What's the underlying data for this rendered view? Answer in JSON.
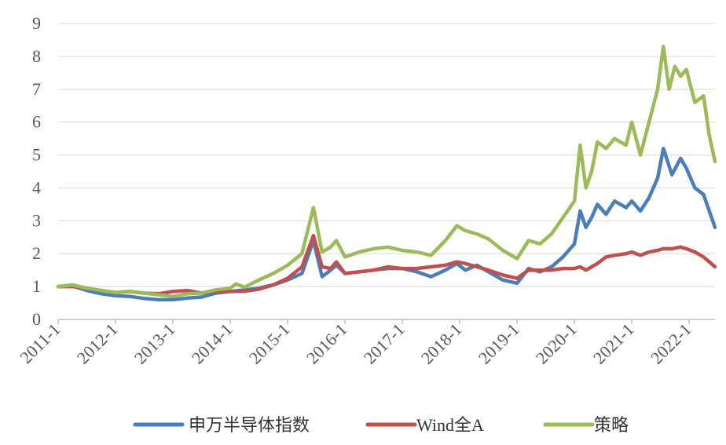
{
  "chart_data": {
    "type": "line",
    "title": "",
    "xlabel": "",
    "ylabel": "",
    "ylim": [
      0,
      9
    ],
    "yticks": [
      "0",
      "1",
      "2",
      "3",
      "4",
      "5",
      "6",
      "7",
      "8",
      "9"
    ],
    "xlim": [
      2011.0,
      2022.45
    ],
    "xticks": [
      "2011-1",
      "2012-1",
      "2013-1",
      "2014-1",
      "2015-1",
      "2016-1",
      "2017-1",
      "2018-1",
      "2019-1",
      "2020-1",
      "2021-1",
      "2022-1"
    ],
    "grid": true,
    "legend_position": "bottom",
    "series": [
      {
        "name": "申万半导体指数",
        "color": "#4a7ebb",
        "points": [
          [
            2011.0,
            1.0
          ],
          [
            2011.25,
            1.02
          ],
          [
            2011.5,
            0.88
          ],
          [
            2011.75,
            0.78
          ],
          [
            2012.0,
            0.72
          ],
          [
            2012.25,
            0.7
          ],
          [
            2012.5,
            0.64
          ],
          [
            2012.75,
            0.6
          ],
          [
            2013.0,
            0.6
          ],
          [
            2013.25,
            0.65
          ],
          [
            2013.5,
            0.68
          ],
          [
            2013.75,
            0.8
          ],
          [
            2014.0,
            0.85
          ],
          [
            2014.25,
            0.9
          ],
          [
            2014.5,
            0.95
          ],
          [
            2014.75,
            1.05
          ],
          [
            2015.0,
            1.2
          ],
          [
            2015.25,
            1.4
          ],
          [
            2015.45,
            2.4
          ],
          [
            2015.6,
            1.3
          ],
          [
            2015.75,
            1.5
          ],
          [
            2015.85,
            1.65
          ],
          [
            2016.0,
            1.4
          ],
          [
            2016.25,
            1.45
          ],
          [
            2016.5,
            1.5
          ],
          [
            2016.75,
            1.55
          ],
          [
            2017.0,
            1.55
          ],
          [
            2017.25,
            1.45
          ],
          [
            2017.5,
            1.3
          ],
          [
            2017.75,
            1.5
          ],
          [
            2017.95,
            1.7
          ],
          [
            2018.1,
            1.5
          ],
          [
            2018.3,
            1.65
          ],
          [
            2018.5,
            1.45
          ],
          [
            2018.75,
            1.2
          ],
          [
            2019.0,
            1.1
          ],
          [
            2019.2,
            1.55
          ],
          [
            2019.4,
            1.45
          ],
          [
            2019.6,
            1.6
          ],
          [
            2019.8,
            1.9
          ],
          [
            2020.0,
            2.3
          ],
          [
            2020.1,
            3.3
          ],
          [
            2020.2,
            2.8
          ],
          [
            2020.3,
            3.1
          ],
          [
            2020.4,
            3.5
          ],
          [
            2020.55,
            3.2
          ],
          [
            2020.7,
            3.6
          ],
          [
            2020.9,
            3.4
          ],
          [
            2021.0,
            3.6
          ],
          [
            2021.15,
            3.3
          ],
          [
            2021.3,
            3.7
          ],
          [
            2021.45,
            4.3
          ],
          [
            2021.55,
            5.2
          ],
          [
            2021.7,
            4.4
          ],
          [
            2021.85,
            4.9
          ],
          [
            2021.95,
            4.6
          ],
          [
            2022.1,
            4.0
          ],
          [
            2022.25,
            3.8
          ],
          [
            2022.35,
            3.3
          ],
          [
            2022.45,
            2.8
          ]
        ]
      },
      {
        "name": "Wind全A",
        "color": "#c0504d",
        "points": [
          [
            2011.0,
            1.0
          ],
          [
            2011.25,
            1.0
          ],
          [
            2011.5,
            0.95
          ],
          [
            2011.75,
            0.88
          ],
          [
            2012.0,
            0.82
          ],
          [
            2012.25,
            0.85
          ],
          [
            2012.5,
            0.8
          ],
          [
            2012.75,
            0.78
          ],
          [
            2013.0,
            0.85
          ],
          [
            2013.25,
            0.88
          ],
          [
            2013.5,
            0.8
          ],
          [
            2013.75,
            0.86
          ],
          [
            2014.0,
            0.85
          ],
          [
            2014.25,
            0.86
          ],
          [
            2014.5,
            0.92
          ],
          [
            2014.75,
            1.05
          ],
          [
            2015.0,
            1.25
          ],
          [
            2015.25,
            1.6
          ],
          [
            2015.45,
            2.55
          ],
          [
            2015.6,
            1.6
          ],
          [
            2015.75,
            1.55
          ],
          [
            2015.85,
            1.75
          ],
          [
            2016.0,
            1.4
          ],
          [
            2016.25,
            1.45
          ],
          [
            2016.5,
            1.5
          ],
          [
            2016.75,
            1.6
          ],
          [
            2017.0,
            1.55
          ],
          [
            2017.25,
            1.55
          ],
          [
            2017.5,
            1.6
          ],
          [
            2017.75,
            1.65
          ],
          [
            2017.95,
            1.75
          ],
          [
            2018.1,
            1.7
          ],
          [
            2018.3,
            1.6
          ],
          [
            2018.5,
            1.5
          ],
          [
            2018.75,
            1.35
          ],
          [
            2019.0,
            1.25
          ],
          [
            2019.2,
            1.5
          ],
          [
            2019.4,
            1.5
          ],
          [
            2019.6,
            1.5
          ],
          [
            2019.8,
            1.55
          ],
          [
            2020.0,
            1.55
          ],
          [
            2020.1,
            1.6
          ],
          [
            2020.2,
            1.5
          ],
          [
            2020.3,
            1.6
          ],
          [
            2020.4,
            1.7
          ],
          [
            2020.55,
            1.9
          ],
          [
            2020.7,
            1.95
          ],
          [
            2020.9,
            2.0
          ],
          [
            2021.0,
            2.05
          ],
          [
            2021.15,
            1.95
          ],
          [
            2021.3,
            2.05
          ],
          [
            2021.45,
            2.1
          ],
          [
            2021.55,
            2.15
          ],
          [
            2021.7,
            2.15
          ],
          [
            2021.85,
            2.2
          ],
          [
            2021.95,
            2.15
          ],
          [
            2022.1,
            2.05
          ],
          [
            2022.25,
            1.9
          ],
          [
            2022.35,
            1.75
          ],
          [
            2022.45,
            1.6
          ]
        ]
      },
      {
        "name": "策略",
        "color": "#9bbb59",
        "points": [
          [
            2011.0,
            1.0
          ],
          [
            2011.25,
            1.05
          ],
          [
            2011.5,
            0.95
          ],
          [
            2011.75,
            0.88
          ],
          [
            2012.0,
            0.82
          ],
          [
            2012.25,
            0.85
          ],
          [
            2012.5,
            0.8
          ],
          [
            2012.75,
            0.75
          ],
          [
            2013.0,
            0.7
          ],
          [
            2013.25,
            0.78
          ],
          [
            2013.5,
            0.8
          ],
          [
            2013.75,
            0.9
          ],
          [
            2014.0,
            0.95
          ],
          [
            2014.1,
            1.08
          ],
          [
            2014.25,
            0.98
          ],
          [
            2014.5,
            1.2
          ],
          [
            2014.75,
            1.4
          ],
          [
            2015.0,
            1.65
          ],
          [
            2015.25,
            2.0
          ],
          [
            2015.45,
            3.4
          ],
          [
            2015.6,
            2.05
          ],
          [
            2015.75,
            2.2
          ],
          [
            2015.85,
            2.4
          ],
          [
            2016.0,
            1.9
          ],
          [
            2016.25,
            2.05
          ],
          [
            2016.5,
            2.15
          ],
          [
            2016.75,
            2.2
          ],
          [
            2017.0,
            2.1
          ],
          [
            2017.25,
            2.05
          ],
          [
            2017.5,
            1.95
          ],
          [
            2017.75,
            2.4
          ],
          [
            2017.95,
            2.85
          ],
          [
            2018.1,
            2.7
          ],
          [
            2018.3,
            2.6
          ],
          [
            2018.5,
            2.45
          ],
          [
            2018.75,
            2.1
          ],
          [
            2019.0,
            1.85
          ],
          [
            2019.2,
            2.4
          ],
          [
            2019.4,
            2.3
          ],
          [
            2019.6,
            2.6
          ],
          [
            2019.8,
            3.1
          ],
          [
            2020.0,
            3.6
          ],
          [
            2020.1,
            5.3
          ],
          [
            2020.2,
            4.0
          ],
          [
            2020.3,
            4.5
          ],
          [
            2020.4,
            5.4
          ],
          [
            2020.55,
            5.2
          ],
          [
            2020.7,
            5.5
          ],
          [
            2020.9,
            5.3
          ],
          [
            2021.0,
            6.0
          ],
          [
            2021.15,
            5.0
          ],
          [
            2021.3,
            6.0
          ],
          [
            2021.45,
            7.0
          ],
          [
            2021.55,
            8.3
          ],
          [
            2021.65,
            7.0
          ],
          [
            2021.75,
            7.7
          ],
          [
            2021.85,
            7.4
          ],
          [
            2021.95,
            7.6
          ],
          [
            2022.1,
            6.6
          ],
          [
            2022.25,
            6.8
          ],
          [
            2022.35,
            5.6
          ],
          [
            2022.45,
            4.8
          ]
        ]
      }
    ]
  }
}
